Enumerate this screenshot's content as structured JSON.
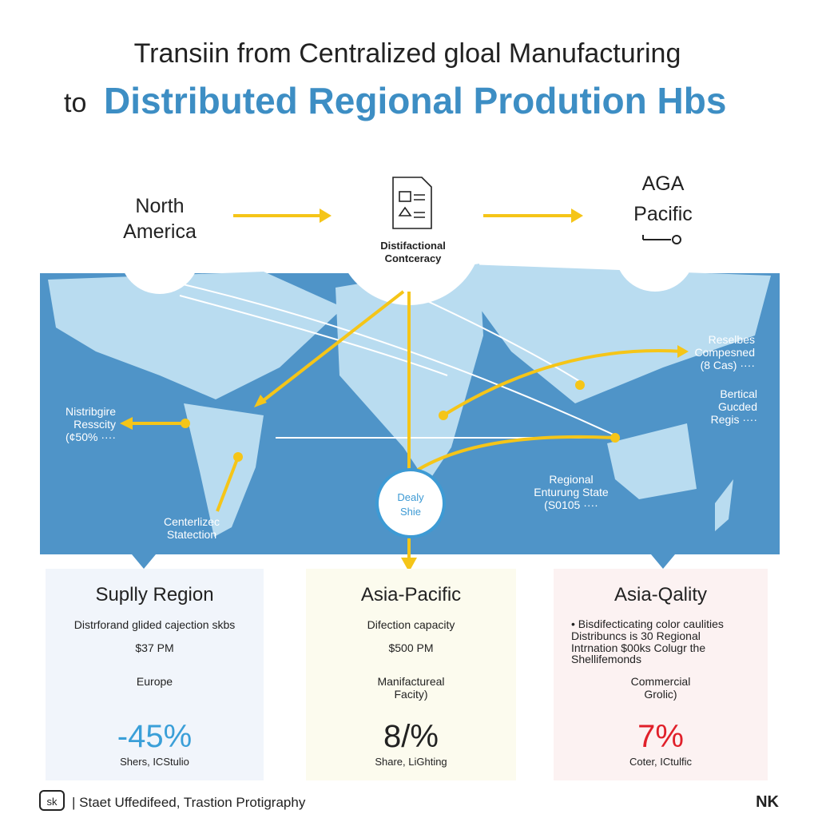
{
  "header": {
    "title_line1": "Transiin from Centralized gloal Manufacturing",
    "title_prefix": "to",
    "title_line2": "Distributed Regional Prodution Hbs"
  },
  "top": {
    "left": [
      "North",
      "America"
    ],
    "center": [
      "Distifactional",
      "Contceracy"
    ],
    "right": [
      "AGA",
      "Pacific"
    ]
  },
  "map": {
    "labels": [
      {
        "lines": [
          "Nistribgire",
          "Resscity",
          "(¢50% ····"
        ]
      },
      {
        "lines": [
          "Centerlizec",
          "Statection"
        ]
      },
      {
        "lines": [
          "Reselbes",
          "Compesned",
          "(8 Cas) ····"
        ]
      },
      {
        "lines": [
          "Bertical",
          "Gucded",
          "Regis ····"
        ]
      },
      {
        "lines": [
          "Regional",
          "Enturung State",
          "(S0105 ····"
        ]
      }
    ],
    "hub": [
      "Dealy",
      "Shie"
    ]
  },
  "cards": [
    {
      "title": "Suplly Region",
      "lines": [
        "Distrforand glided cajection skbs",
        "$37 PM",
        "Europe"
      ],
      "stat": "-45%",
      "footer": "Shers, ICStulio"
    },
    {
      "title": "Asia-Pacific",
      "lines": [
        "Difection capacity",
        "$500 PM",
        "Manifactureal",
        "Facity)"
      ],
      "stat": "8/%",
      "footer": "Share, LiGhting"
    },
    {
      "title": "Asia-Qality",
      "lines": [
        "• Bisdifecticating color caulities",
        "Distribuncs is 30 Regional",
        "Intrnation $00ks Colugr the",
        "Shellifemonds",
        "Commercial",
        "Grolic)"
      ],
      "stat": "7%",
      "footer": "Coter, ICtulfic"
    }
  ],
  "footer": {
    "icon": "sk",
    "text": "| Staet Uffedifeed, Trastion Protigraphy",
    "logo": "NK"
  }
}
